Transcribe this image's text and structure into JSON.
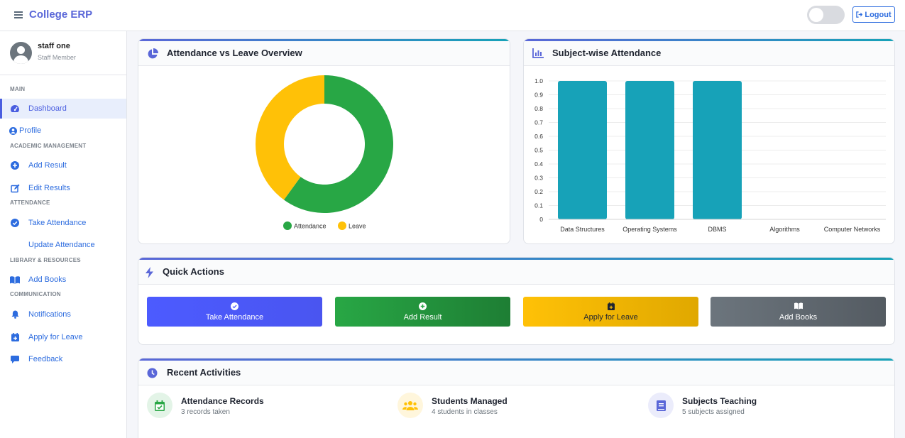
{
  "app": {
    "title": "College ERP",
    "logout_label": "Logout"
  },
  "user": {
    "name": "staff one",
    "role": "Staff Member"
  },
  "sidebar": {
    "sections": [
      "MAIN",
      "ACADEMIC MANAGEMENT",
      "ATTENDANCE",
      "LIBRARY & RESOURCES",
      "COMMUNICATION"
    ],
    "items": [
      {
        "label": "Dashboard",
        "icon": "gauge-icon",
        "active": true
      },
      {
        "label": "Profile",
        "icon": "user-circle-icon"
      },
      {
        "label": "Add Result",
        "icon": "plus-circle-icon"
      },
      {
        "label": "Edit Results",
        "icon": "edit-icon"
      },
      {
        "label": "Take Attendance",
        "icon": "check-circle-icon"
      },
      {
        "label": "Update Attendance",
        "icon": ""
      },
      {
        "label": "Add Books",
        "icon": "book-open-icon"
      },
      {
        "label": "Notifications",
        "icon": "bell-icon"
      },
      {
        "label": "Apply for Leave",
        "icon": "calendar-plus-icon"
      },
      {
        "label": "Feedback",
        "icon": "comment-icon"
      }
    ]
  },
  "cards": {
    "overview_title": "Attendance vs Leave Overview",
    "subject_title": "Subject-wise Attendance",
    "quick_title": "Quick Actions",
    "recent_title": "Recent Activities"
  },
  "quick_actions": [
    {
      "label": "Take Attendance",
      "color": "#4c5bff",
      "icon": "check-circle-icon"
    },
    {
      "label": "Add Result",
      "color": "#28a745",
      "icon": "plus-circle-icon"
    },
    {
      "label": "Apply for Leave",
      "color": "#ffc107",
      "icon": "calendar-plus-icon"
    },
    {
      "label": "Add Books",
      "color": "#6c757d",
      "icon": "book-open-icon"
    }
  ],
  "recent": [
    {
      "title": "Attendance Records",
      "sub": "3 records taken",
      "icon": "calendar-check-icon",
      "color": "#28a745"
    },
    {
      "title": "Students Managed",
      "sub": "4 students in classes",
      "icon": "users-icon",
      "color": "#ffc107"
    },
    {
      "title": "Subjects Teaching",
      "sub": "5 subjects assigned",
      "icon": "book-icon",
      "color": "#5a67d8"
    }
  ],
  "chart_data": [
    {
      "type": "pie",
      "donut": true,
      "categories": [
        "Attendance",
        "Leave"
      ],
      "values": [
        60,
        40
      ],
      "colors": [
        "#28a745",
        "#ffc107"
      ],
      "legend": "bottom"
    },
    {
      "type": "bar",
      "categories": [
        "Data Structures",
        "Operating Systems",
        "DBMS",
        "Algorithms",
        "Computer Networks"
      ],
      "values": [
        1,
        1,
        1,
        0,
        0
      ],
      "ylim": [
        0,
        1
      ],
      "yticks": [
        "0",
        "0.1",
        "0.2",
        "0.3",
        "0.4",
        "0.5",
        "0.6",
        "0.7",
        "0.8",
        "0.9",
        "1.0"
      ],
      "color": "#17a2b8",
      "grid": true
    }
  ]
}
